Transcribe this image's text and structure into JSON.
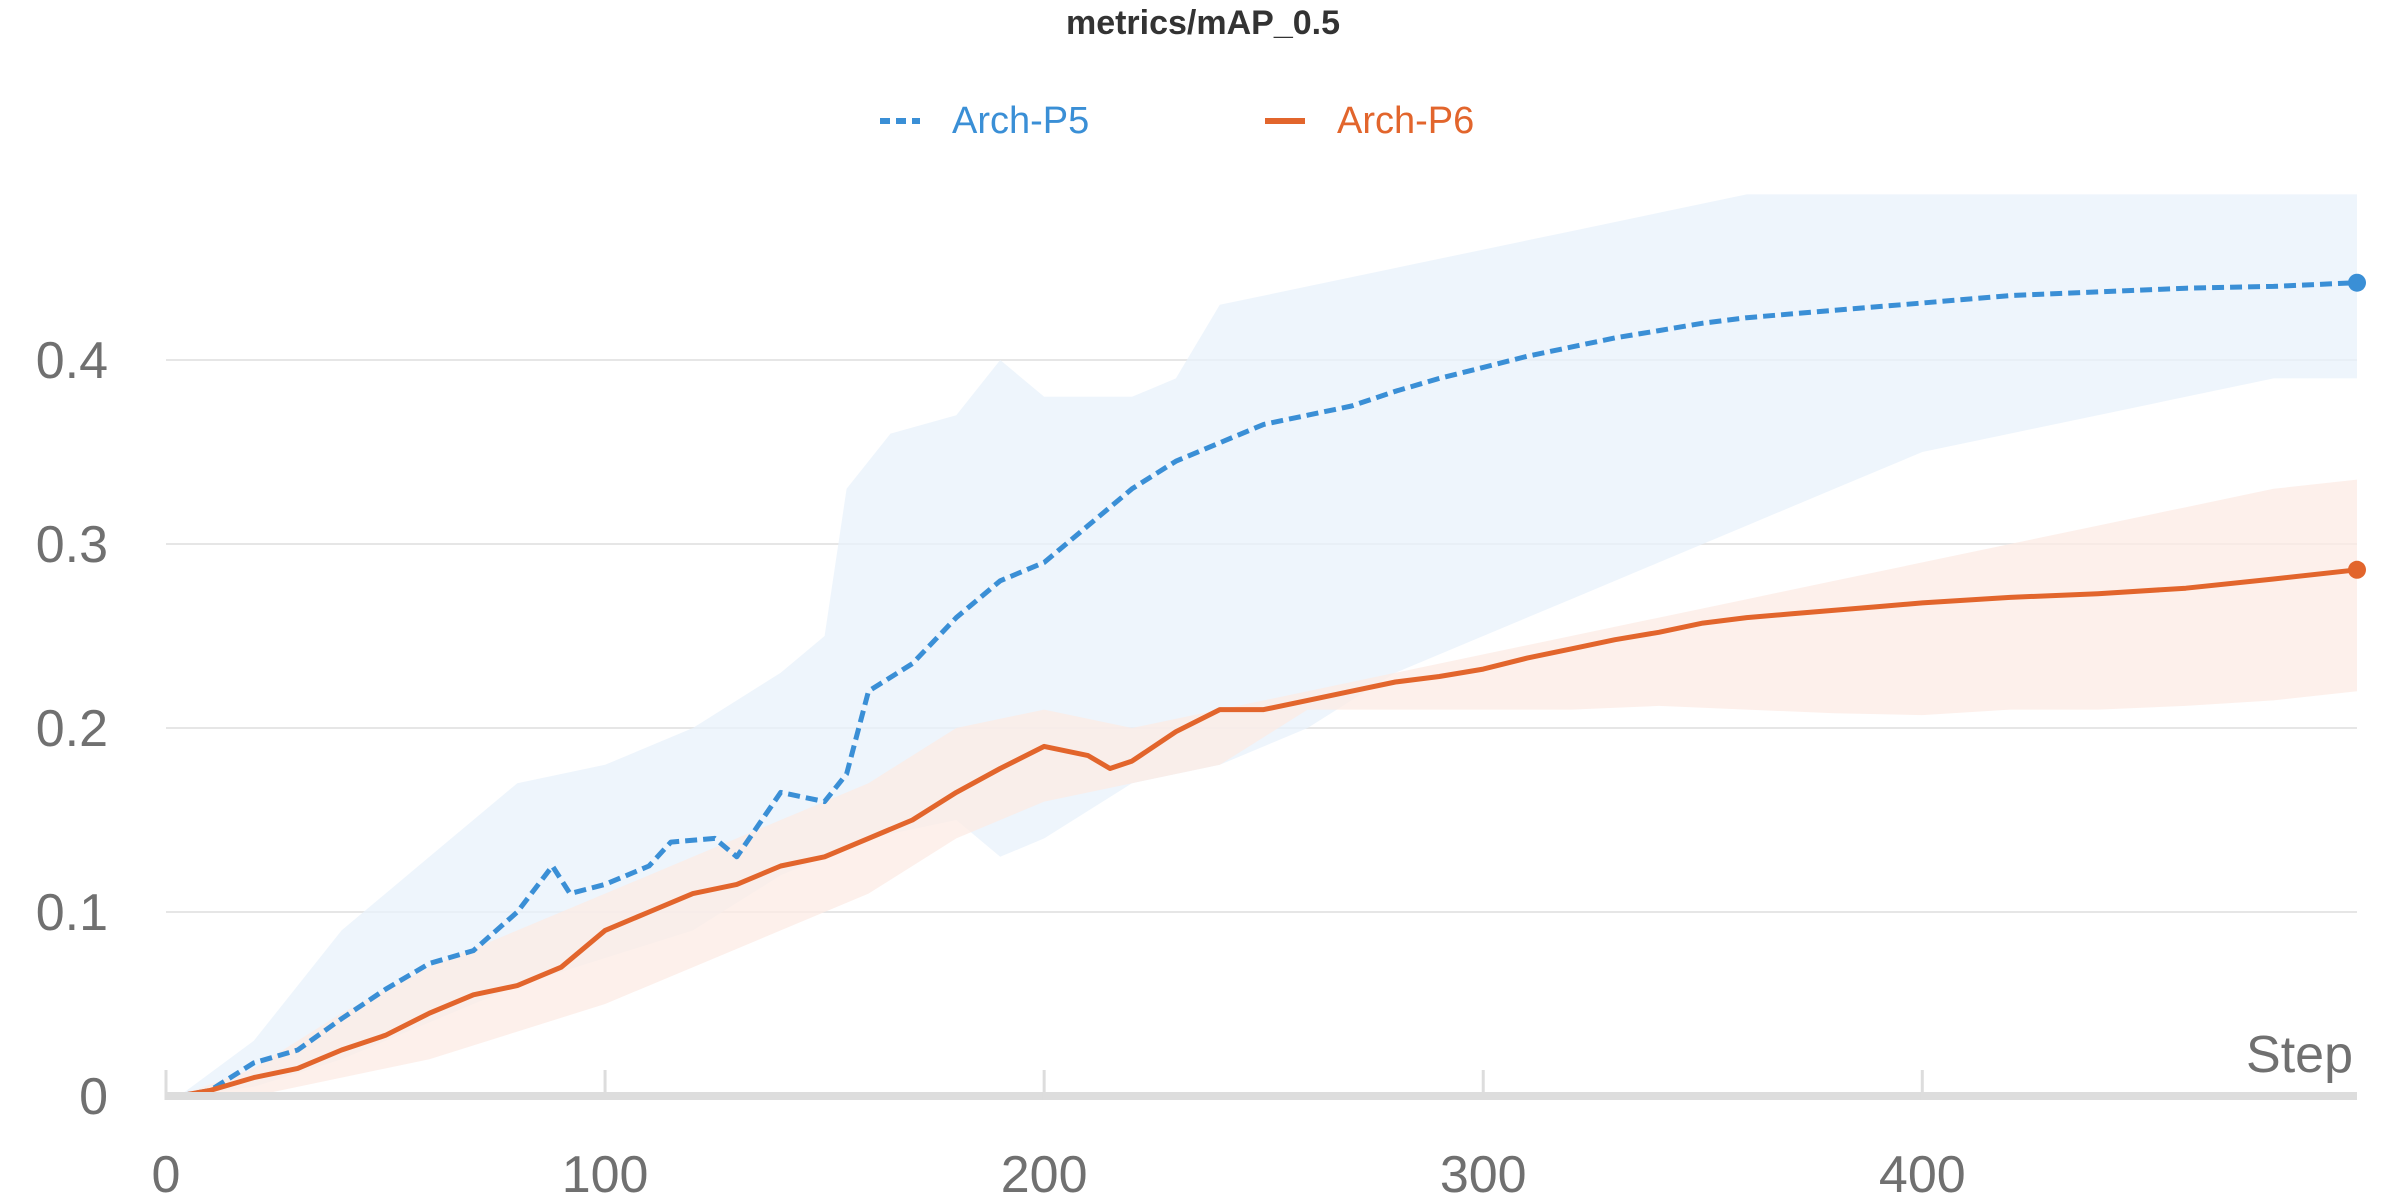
{
  "chart_data": {
    "type": "line",
    "title": "metrics/mAP_0.5",
    "xlabel": "Step",
    "ylabel": "",
    "xlim": [
      0,
      499
    ],
    "ylim": [
      0,
      0.5
    ],
    "x_ticks": [
      0,
      100,
      200,
      300,
      400
    ],
    "y_ticks": [
      0,
      0.1,
      0.2,
      0.3,
      0.4
    ],
    "y_tick_labels": [
      "0",
      "0.1",
      "0.2",
      "0.3",
      "0.4"
    ],
    "x_tick_labels": [
      "0",
      "100",
      "200",
      "300",
      "400"
    ],
    "grid": "horizontal",
    "legend_position": "top-center",
    "series": [
      {
        "name": "Arch-P5",
        "color": "#3a8fd6",
        "band_color": "#e8f1fb",
        "line_style": "dashed",
        "end_marker": true,
        "points": [
          [
            3,
            0.0
          ],
          [
            10,
            0.003
          ],
          [
            20,
            0.018
          ],
          [
            30,
            0.025
          ],
          [
            40,
            0.042
          ],
          [
            50,
            0.058
          ],
          [
            60,
            0.072
          ],
          [
            70,
            0.079
          ],
          [
            80,
            0.1
          ],
          [
            88,
            0.125
          ],
          [
            92,
            0.11
          ],
          [
            100,
            0.115
          ],
          [
            110,
            0.125
          ],
          [
            115,
            0.138
          ],
          [
            125,
            0.14
          ],
          [
            130,
            0.13
          ],
          [
            140,
            0.165
          ],
          [
            150,
            0.16
          ],
          [
            155,
            0.175
          ],
          [
            160,
            0.22
          ],
          [
            170,
            0.235
          ],
          [
            180,
            0.26
          ],
          [
            190,
            0.28
          ],
          [
            200,
            0.29
          ],
          [
            210,
            0.31
          ],
          [
            220,
            0.33
          ],
          [
            230,
            0.345
          ],
          [
            240,
            0.355
          ],
          [
            250,
            0.365
          ],
          [
            260,
            0.37
          ],
          [
            270,
            0.375
          ],
          [
            280,
            0.383
          ],
          [
            290,
            0.39
          ],
          [
            300,
            0.396
          ],
          [
            310,
            0.402
          ],
          [
            320,
            0.407
          ],
          [
            330,
            0.412
          ],
          [
            340,
            0.416
          ],
          [
            350,
            0.42
          ],
          [
            360,
            0.423
          ],
          [
            380,
            0.427
          ],
          [
            400,
            0.431
          ],
          [
            420,
            0.435
          ],
          [
            440,
            0.437
          ],
          [
            460,
            0.439
          ],
          [
            480,
            0.44
          ],
          [
            499,
            0.442
          ]
        ],
        "band_upper": [
          [
            3,
            0.0
          ],
          [
            20,
            0.03
          ],
          [
            40,
            0.09
          ],
          [
            60,
            0.13
          ],
          [
            80,
            0.17
          ],
          [
            100,
            0.18
          ],
          [
            120,
            0.2
          ],
          [
            140,
            0.23
          ],
          [
            150,
            0.25
          ],
          [
            155,
            0.33
          ],
          [
            165,
            0.36
          ],
          [
            180,
            0.37
          ],
          [
            190,
            0.4
          ],
          [
            200,
            0.38
          ],
          [
            220,
            0.38
          ],
          [
            230,
            0.39
          ],
          [
            240,
            0.43
          ],
          [
            260,
            0.44
          ],
          [
            280,
            0.45
          ],
          [
            300,
            0.46
          ],
          [
            320,
            0.47
          ],
          [
            340,
            0.48
          ],
          [
            360,
            0.49
          ],
          [
            380,
            0.49
          ],
          [
            400,
            0.49
          ],
          [
            440,
            0.49
          ],
          [
            480,
            0.49
          ],
          [
            499,
            0.49
          ]
        ],
        "band_lower": [
          [
            3,
            0.0
          ],
          [
            20,
            0.005
          ],
          [
            40,
            0.02
          ],
          [
            60,
            0.04
          ],
          [
            80,
            0.06
          ],
          [
            100,
            0.075
          ],
          [
            120,
            0.09
          ],
          [
            140,
            0.12
          ],
          [
            160,
            0.14
          ],
          [
            180,
            0.15
          ],
          [
            190,
            0.13
          ],
          [
            200,
            0.14
          ],
          [
            220,
            0.17
          ],
          [
            240,
            0.18
          ],
          [
            260,
            0.2
          ],
          [
            280,
            0.23
          ],
          [
            300,
            0.25
          ],
          [
            320,
            0.27
          ],
          [
            340,
            0.29
          ],
          [
            360,
            0.31
          ],
          [
            380,
            0.33
          ],
          [
            400,
            0.35
          ],
          [
            420,
            0.36
          ],
          [
            440,
            0.37
          ],
          [
            460,
            0.38
          ],
          [
            480,
            0.39
          ],
          [
            499,
            0.39
          ]
        ]
      },
      {
        "name": "Arch-P6",
        "color": "#e2652c",
        "band_color": "#fcebe4",
        "line_style": "solid",
        "end_marker": true,
        "points": [
          [
            3,
            0.0
          ],
          [
            10,
            0.003
          ],
          [
            20,
            0.01
          ],
          [
            30,
            0.015
          ],
          [
            40,
            0.025
          ],
          [
            50,
            0.033
          ],
          [
            60,
            0.045
          ],
          [
            70,
            0.055
          ],
          [
            80,
            0.06
          ],
          [
            90,
            0.07
          ],
          [
            100,
            0.09
          ],
          [
            110,
            0.1
          ],
          [
            120,
            0.11
          ],
          [
            130,
            0.115
          ],
          [
            140,
            0.125
          ],
          [
            150,
            0.13
          ],
          [
            160,
            0.14
          ],
          [
            170,
            0.15
          ],
          [
            180,
            0.165
          ],
          [
            190,
            0.178
          ],
          [
            200,
            0.19
          ],
          [
            210,
            0.185
          ],
          [
            215,
            0.178
          ],
          [
            220,
            0.182
          ],
          [
            230,
            0.198
          ],
          [
            240,
            0.21
          ],
          [
            250,
            0.21
          ],
          [
            260,
            0.215
          ],
          [
            270,
            0.22
          ],
          [
            280,
            0.225
          ],
          [
            290,
            0.228
          ],
          [
            300,
            0.232
          ],
          [
            310,
            0.238
          ],
          [
            320,
            0.243
          ],
          [
            330,
            0.248
          ],
          [
            340,
            0.252
          ],
          [
            350,
            0.257
          ],
          [
            360,
            0.26
          ],
          [
            370,
            0.262
          ],
          [
            380,
            0.264
          ],
          [
            390,
            0.266
          ],
          [
            400,
            0.268
          ],
          [
            420,
            0.271
          ],
          [
            440,
            0.273
          ],
          [
            460,
            0.276
          ],
          [
            480,
            0.281
          ],
          [
            499,
            0.286
          ]
        ],
        "band_upper": [
          [
            3,
            0.0
          ],
          [
            20,
            0.015
          ],
          [
            40,
            0.045
          ],
          [
            60,
            0.07
          ],
          [
            80,
            0.09
          ],
          [
            100,
            0.11
          ],
          [
            120,
            0.13
          ],
          [
            140,
            0.15
          ],
          [
            160,
            0.17
          ],
          [
            180,
            0.2
          ],
          [
            200,
            0.21
          ],
          [
            220,
            0.2
          ],
          [
            240,
            0.21
          ],
          [
            260,
            0.22
          ],
          [
            280,
            0.23
          ],
          [
            300,
            0.24
          ],
          [
            320,
            0.25
          ],
          [
            340,
            0.26
          ],
          [
            360,
            0.27
          ],
          [
            380,
            0.28
          ],
          [
            400,
            0.29
          ],
          [
            420,
            0.3
          ],
          [
            440,
            0.31
          ],
          [
            460,
            0.32
          ],
          [
            480,
            0.33
          ],
          [
            499,
            0.335
          ]
        ],
        "band_lower": [
          [
            3,
            0.0
          ],
          [
            20,
            0.0
          ],
          [
            40,
            0.01
          ],
          [
            60,
            0.02
          ],
          [
            80,
            0.035
          ],
          [
            100,
            0.05
          ],
          [
            120,
            0.07
          ],
          [
            140,
            0.09
          ],
          [
            160,
            0.11
          ],
          [
            180,
            0.14
          ],
          [
            200,
            0.16
          ],
          [
            220,
            0.17
          ],
          [
            240,
            0.18
          ],
          [
            260,
            0.21
          ],
          [
            280,
            0.21
          ],
          [
            300,
            0.21
          ],
          [
            320,
            0.21
          ],
          [
            340,
            0.212
          ],
          [
            360,
            0.21
          ],
          [
            380,
            0.208
          ],
          [
            400,
            0.207
          ],
          [
            420,
            0.21
          ],
          [
            440,
            0.21
          ],
          [
            460,
            0.212
          ],
          [
            480,
            0.215
          ],
          [
            499,
            0.22
          ]
        ]
      }
    ]
  }
}
